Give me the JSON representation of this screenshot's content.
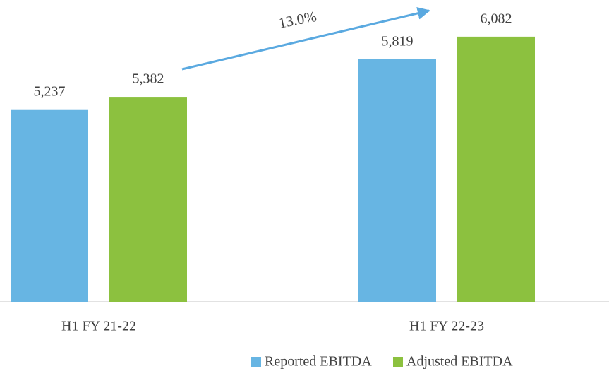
{
  "chart_data": {
    "type": "bar",
    "categories": [
      "H1 FY 21-22",
      "H1 FY 22-23"
    ],
    "series": [
      {
        "name": "Reported EBITDA",
        "color": "#67b5e3",
        "values": [
          5237,
          5819
        ],
        "value_labels": [
          "5,237",
          "5,819"
        ]
      },
      {
        "name": "Adjusted EBITDA",
        "color": "#8cc13f",
        "values": [
          5382,
          6082
        ],
        "value_labels": [
          "5,382",
          "6,082"
        ]
      }
    ],
    "ylim": [
      3000,
      6500
    ],
    "annotation": "13.0%",
    "annotation_color": "#5aa9e0",
    "legend": "bottom"
  }
}
